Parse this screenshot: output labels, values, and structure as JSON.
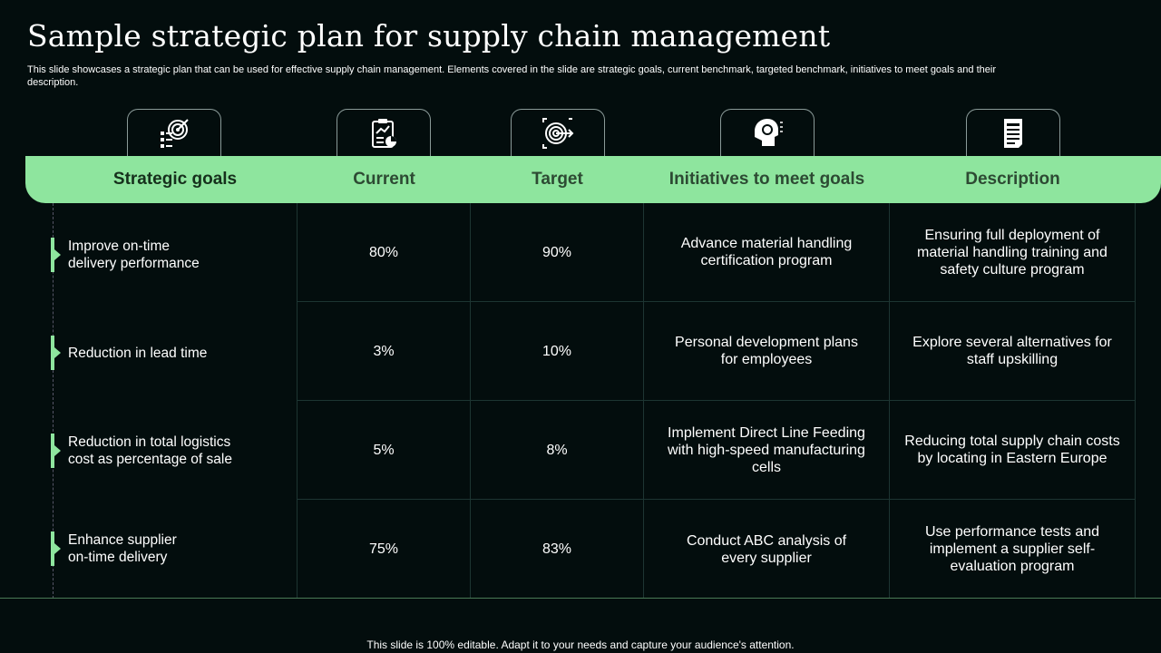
{
  "title": "Sample strategic plan for supply chain management",
  "subtitle": "This slide showcases a strategic plan that can be used for effective supply chain management. Elements covered in the slide are strategic goals, current benchmark, targeted benchmark, initiatives to meet goals and their description.",
  "icons": [
    "goals-target-checklist-icon",
    "clipboard-chart-icon",
    "target-arrow-icon",
    "bulb-head-icon",
    "document-icon"
  ],
  "headers": {
    "goals": "Strategic goals",
    "current": "Current",
    "target": "Target",
    "initiatives": "Initiatives to meet goals",
    "description": "Description"
  },
  "rows": [
    {
      "goal": "Improve on-time\ndelivery performance",
      "current": "80%",
      "target": "90%",
      "initiative": "Advance material handling certification program",
      "description": "Ensuring full deployment of material handling training and safety culture program"
    },
    {
      "goal": "Reduction in lead time",
      "current": "3%",
      "target": "10%",
      "initiative": "Personal development plans for employees",
      "description": "Explore several alternatives for staff upskilling"
    },
    {
      "goal": "Reduction in total logistics cost as percentage of sale",
      "current": "5%",
      "target": "8%",
      "initiative": "Implement Direct Line Feeding with high-speed manufacturing cells",
      "description": "Reducing total supply chain costs by locating in Eastern Europe"
    },
    {
      "goal": "Enhance supplier\non-time delivery",
      "current": "75%",
      "target": "83%",
      "initiative": "Conduct ABC analysis of every supplier",
      "description": "Use performance tests and implement a supplier self-evaluation program"
    }
  ],
  "footer": "This slide is 100% editable. Adapt it to your needs and capture your audience's attention.",
  "colors": {
    "background": "#030d0d",
    "accent": "#8ee59e",
    "grid_line": "#1d3532"
  }
}
